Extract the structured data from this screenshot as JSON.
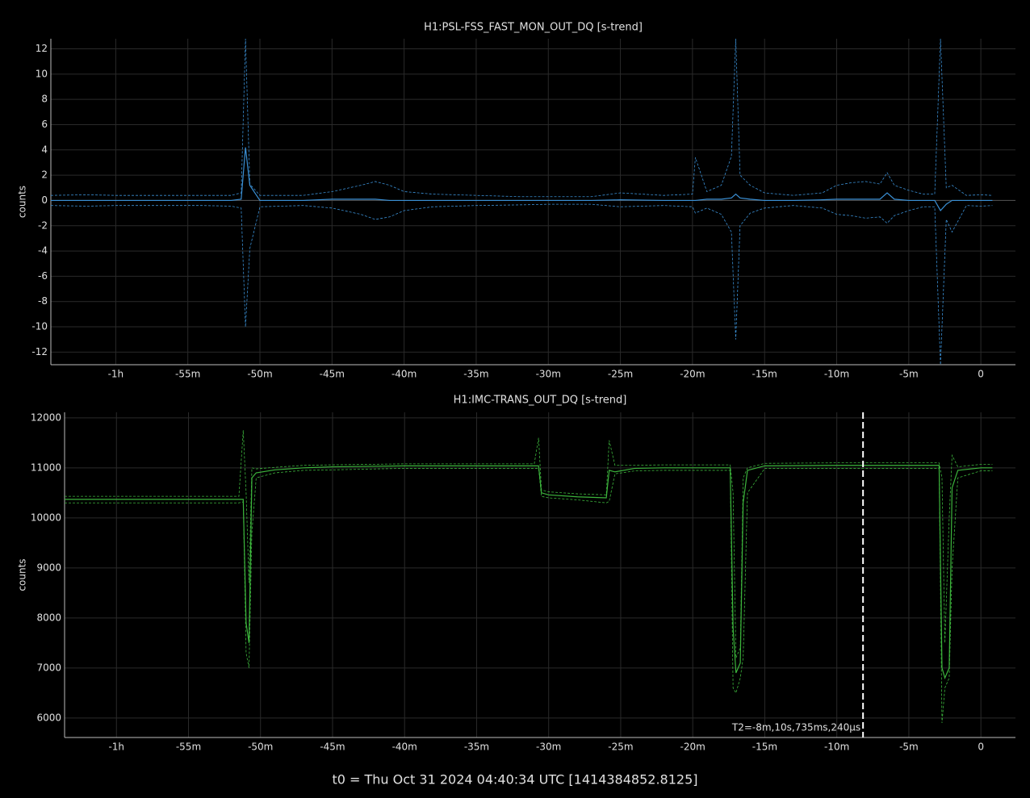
{
  "footer": "t0 = Thu Oct 31 2024 04:40:34 UTC [1414384852.8125]",
  "chart_data": [
    {
      "type": "line",
      "title": "H1:PSL-FSS_FAST_MON_OUT_DQ [s-trend]",
      "ylabel": "counts",
      "grid": true,
      "xlim": [
        -64.5,
        2.4
      ],
      "ylim": [
        -13,
        12.8
      ],
      "xticks": [
        {
          "value": -60,
          "label": "-1h"
        },
        {
          "value": -55,
          "label": "-55m"
        },
        {
          "value": -50,
          "label": "-50m"
        },
        {
          "value": -45,
          "label": "-45m"
        },
        {
          "value": -40,
          "label": "-40m"
        },
        {
          "value": -35,
          "label": "-35m"
        },
        {
          "value": -30,
          "label": "-30m"
        },
        {
          "value": -25,
          "label": "-25m"
        },
        {
          "value": -20,
          "label": "-20m"
        },
        {
          "value": -15,
          "label": "-15m"
        },
        {
          "value": -10,
          "label": "-10m"
        },
        {
          "value": -5,
          "label": "-5m"
        },
        0
      ],
      "yticks": [
        12,
        10,
        8,
        6,
        4,
        2,
        0,
        -2,
        -4,
        -6,
        -8,
        -10,
        -12
      ],
      "x": [
        -64.5,
        -62,
        -60,
        -57,
        -54,
        -52,
        -51.3,
        -51,
        -50.7,
        -50,
        -47,
        -45,
        -43,
        -42,
        -41,
        -40,
        -38,
        -35,
        -32,
        -30,
        -27,
        -25,
        -22,
        -20,
        -19.8,
        -19,
        -18,
        -17.3,
        -17,
        -16.7,
        -16,
        -15,
        -13,
        -11,
        -10,
        -9,
        -8,
        -7,
        -6.5,
        -6,
        -5,
        -4,
        -3.2,
        -2.8,
        -2.4,
        -2,
        -1,
        0,
        0.8
      ],
      "series": [
        {
          "color": "#3a8fd4",
          "dash": true,
          "values": [
            0.4,
            0.45,
            0.4,
            0.4,
            0.4,
            0.4,
            0.6,
            12.8,
            1.3,
            0.4,
            0.4,
            0.7,
            1.2,
            1.5,
            1.2,
            0.7,
            0.5,
            0.4,
            0.3,
            0.3,
            0.3,
            0.6,
            0.4,
            0.5,
            3.4,
            0.7,
            1.2,
            3.5,
            12.8,
            2,
            1.2,
            0.6,
            0.4,
            0.6,
            1.2,
            1.4,
            1.5,
            1.3,
            2.2,
            1.2,
            0.8,
            0.5,
            0.5,
            12.8,
            1,
            1.2,
            0.4,
            0.45,
            0.4
          ]
        },
        {
          "color": "#3a8fd4",
          "dash": true,
          "values": [
            -0.4,
            -0.45,
            -0.4,
            -0.4,
            -0.4,
            -0.45,
            -0.6,
            -10,
            -3.8,
            -0.5,
            -0.4,
            -0.6,
            -1.1,
            -1.5,
            -1.3,
            -0.8,
            -0.5,
            -0.4,
            -0.35,
            -0.3,
            -0.3,
            -0.5,
            -0.4,
            -0.5,
            -1,
            -0.6,
            -1.1,
            -2.5,
            -11,
            -2,
            -1,
            -0.6,
            -0.4,
            -0.6,
            -1.1,
            -1.2,
            -1.4,
            -1.3,
            -1.8,
            -1.2,
            -0.8,
            -0.5,
            -0.5,
            -13,
            -1.5,
            -2.5,
            -0.4,
            -0.45,
            -0.4
          ]
        },
        {
          "color": "#3a8fd4",
          "dash": false,
          "values": [
            0,
            0,
            0,
            0,
            0,
            0,
            0.1,
            4.2,
            1.2,
            0,
            0,
            0.1,
            0.1,
            0.1,
            0,
            0,
            0,
            0,
            0,
            0,
            0,
            0.05,
            0,
            0,
            0,
            0.1,
            0.1,
            0.2,
            0.5,
            0.2,
            0.1,
            0,
            0,
            0.05,
            0.1,
            0.1,
            0.1,
            0.1,
            0.6,
            0.1,
            0,
            0,
            0,
            -0.8,
            -0.3,
            0,
            0,
            0,
            0
          ]
        }
      ]
    },
    {
      "type": "line",
      "title": "H1:IMC-TRANS_OUT_DQ [s-trend]",
      "ylabel": "counts",
      "grid": true,
      "xlim": [
        -63.6,
        2.4
      ],
      "ylim": [
        5610,
        12110
      ],
      "xticks": [
        {
          "value": -60,
          "label": "-1h"
        },
        {
          "value": -55,
          "label": "-55m"
        },
        {
          "value": -50,
          "label": "-50m"
        },
        {
          "value": -45,
          "label": "-45m"
        },
        {
          "value": -40,
          "label": "-40m"
        },
        {
          "value": -35,
          "label": "-35m"
        },
        {
          "value": -30,
          "label": "-30m"
        },
        {
          "value": -25,
          "label": "-25m"
        },
        {
          "value": -20,
          "label": "-20m"
        },
        {
          "value": -15,
          "label": "-15m"
        },
        {
          "value": -10,
          "label": "-10m"
        },
        {
          "value": -5,
          "label": "-5m"
        },
        0
      ],
      "yticks": [
        6000,
        7000,
        8000,
        9000,
        10000,
        11000,
        12000
      ],
      "x": [
        -63.6,
        -60,
        -55,
        -51.5,
        -51.2,
        -51,
        -50.8,
        -50.6,
        -50.3,
        -49,
        -47,
        -45,
        -40,
        -35,
        -31,
        -30.7,
        -30.5,
        -30,
        -28,
        -26,
        -25.8,
        -25.4,
        -24,
        -22,
        -18,
        -17.4,
        -17.2,
        -17,
        -16.7,
        -16.5,
        -16.2,
        -15,
        -10,
        -5,
        -2.9,
        -2.7,
        -2.5,
        -2.2,
        -2,
        -1.6,
        0,
        0.8
      ],
      "series": [
        {
          "color": "#3cb43c",
          "dash": true,
          "values": [
            10430,
            10430,
            10430,
            10430,
            11750,
            10500,
            8700,
            11000,
            10980,
            11010,
            11050,
            11060,
            11080,
            11080,
            11080,
            11600,
            10560,
            10520,
            10480,
            10460,
            11550,
            11050,
            11050,
            11060,
            11060,
            11060,
            10500,
            7200,
            7400,
            10800,
            11000,
            11090,
            11100,
            11100,
            11100,
            10800,
            7500,
            10000,
            11250,
            11020,
            11070,
            11070
          ]
        },
        {
          "color": "#3cb43c",
          "dash": true,
          "values": [
            10300,
            10300,
            10300,
            10300,
            10320,
            7300,
            7000,
            9700,
            10800,
            10900,
            10950,
            10960,
            10990,
            10990,
            10990,
            10990,
            10430,
            10400,
            10360,
            10300,
            10330,
            10880,
            10940,
            10950,
            10950,
            10950,
            6600,
            6500,
            6800,
            7200,
            10500,
            10990,
            10990,
            10990,
            10990,
            5900,
            6600,
            6800,
            9000,
            10800,
            10940,
            10940
          ]
        },
        {
          "color": "#3cb43c",
          "dash": false,
          "values": [
            10370,
            10370,
            10370,
            10370,
            10370,
            7900,
            7500,
            10800,
            10900,
            10960,
            11000,
            11020,
            11040,
            11040,
            11040,
            11040,
            10500,
            10460,
            10420,
            10400,
            10950,
            10920,
            10990,
            11000,
            11000,
            11000,
            7800,
            6900,
            7100,
            10300,
            10950,
            11040,
            11050,
            11050,
            11050,
            7000,
            6800,
            7000,
            10600,
            10950,
            11000,
            11000
          ]
        }
      ],
      "annotations": [
        {
          "x": -8.18,
          "text": "T2=-8m,10s,735ms,240µs"
        }
      ]
    }
  ]
}
